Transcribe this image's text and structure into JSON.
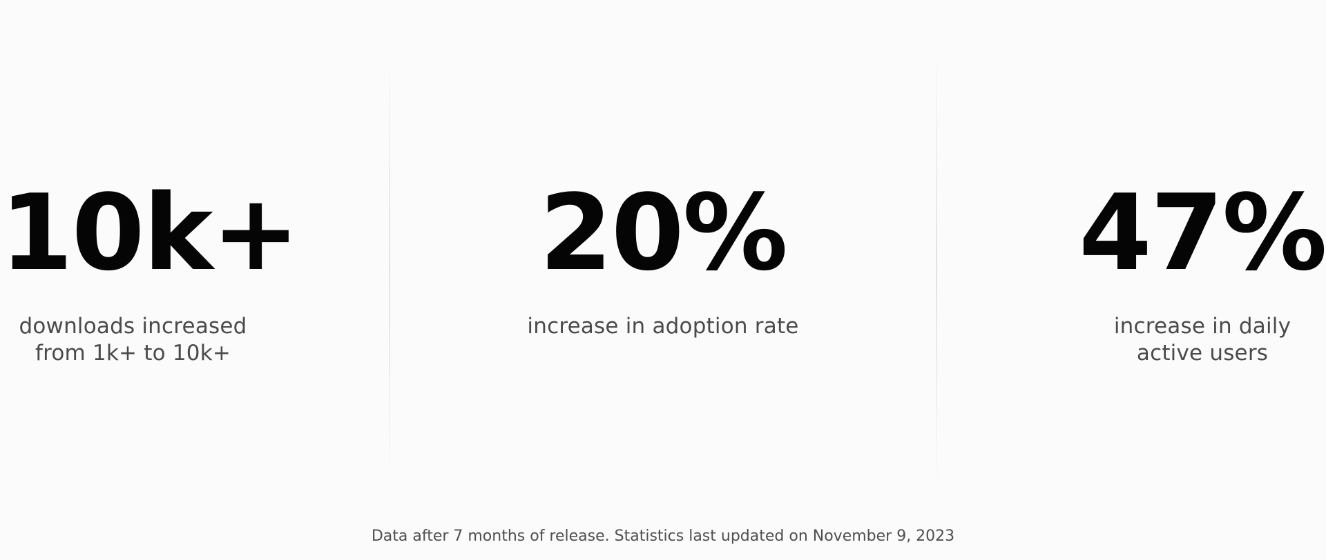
{
  "stats": [
    {
      "value": "10k+",
      "description": "downloads increased from 1k+ to 10k+"
    },
    {
      "value": "20%",
      "description": "increase in adoption rate"
    },
    {
      "value": "47%",
      "description": "increase in daily active users"
    }
  ],
  "footnote": "Data after 7 months of release. Statistics last updated on November 9, 2023",
  "colors": {
    "background": "#fbfbfb",
    "value_text": "#050505",
    "description_text": "#4a4a4a",
    "divider": "#cccccc"
  }
}
